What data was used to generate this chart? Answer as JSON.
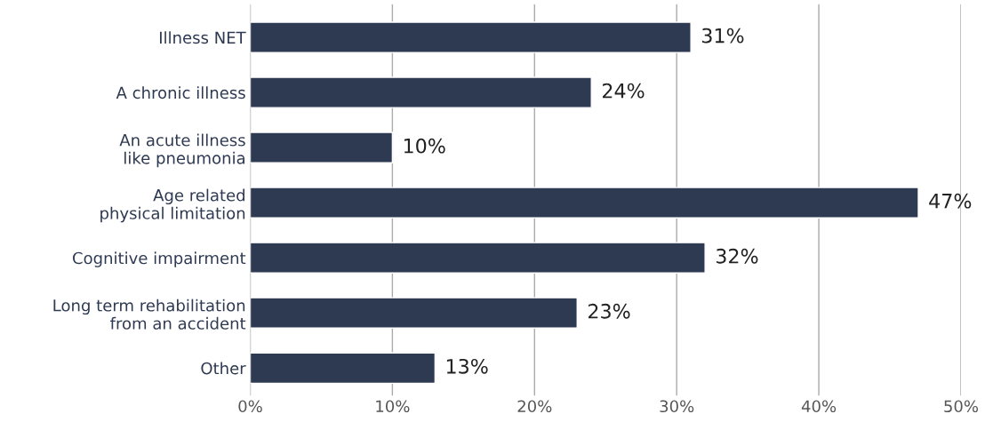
{
  "chart_data": {
    "type": "bar",
    "orientation": "horizontal",
    "categories": [
      "Illness NET",
      "A chronic illness",
      "An acute illness\nlike pneumonia",
      "Age related\nphysical limitation",
      "Cognitive impairment",
      "Long term rehabilitation\nfrom an accident",
      "Other"
    ],
    "values": [
      31,
      24,
      10,
      47,
      32,
      23,
      13
    ],
    "value_labels": [
      "31%",
      "24%",
      "10%",
      "47%",
      "32%",
      "23%",
      "13%"
    ],
    "color": "#2e3a52",
    "xlim": [
      0,
      50
    ],
    "xticks": [
      {
        "value": 0,
        "label": "0%"
      },
      {
        "value": 10,
        "label": "10%"
      },
      {
        "value": 20,
        "label": "20%"
      },
      {
        "value": 30,
        "label": "30%"
      },
      {
        "value": 40,
        "label": "40%"
      },
      {
        "value": 50,
        "label": "50%"
      }
    ],
    "grid": "x"
  }
}
